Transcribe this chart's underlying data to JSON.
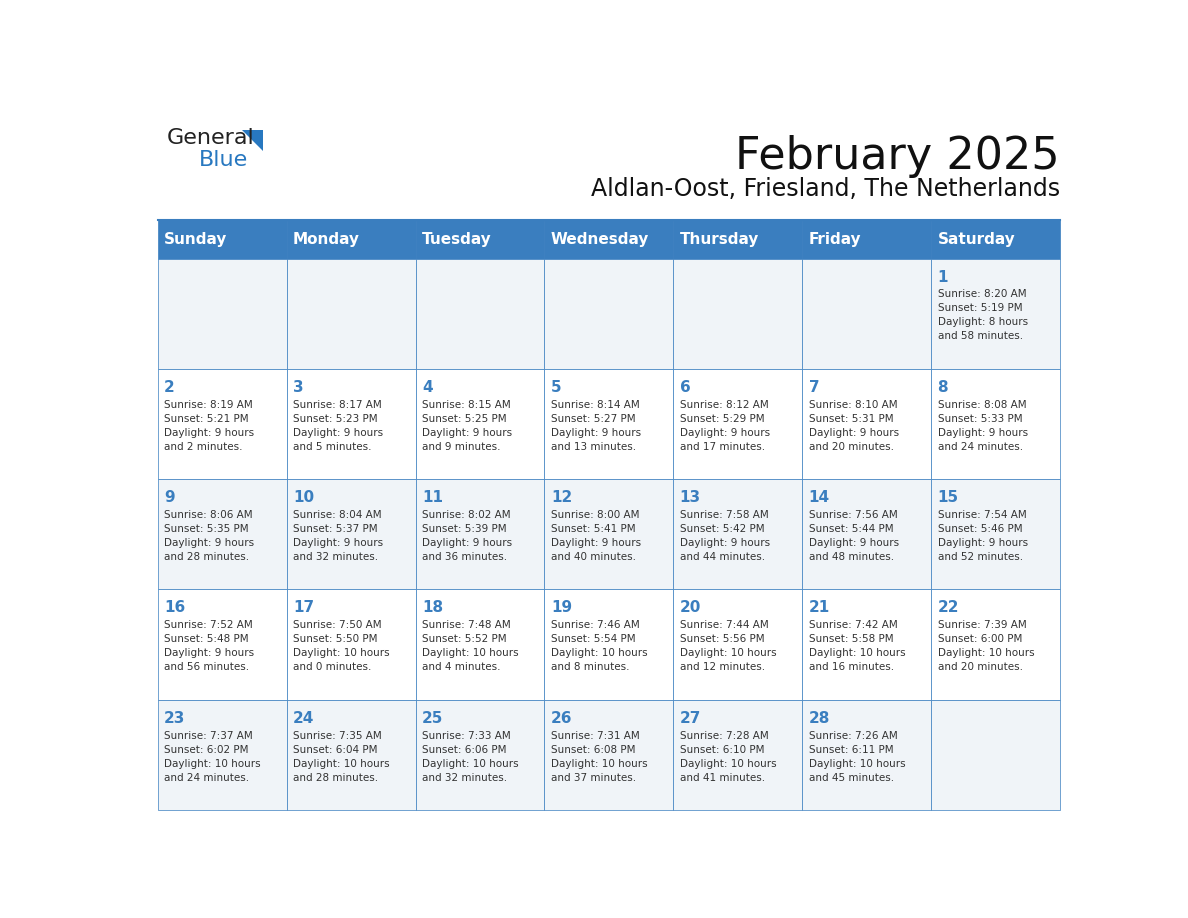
{
  "title": "February 2025",
  "subtitle": "Aldlan-Oost, Friesland, The Netherlands",
  "days_of_week": [
    "Sunday",
    "Monday",
    "Tuesday",
    "Wednesday",
    "Thursday",
    "Friday",
    "Saturday"
  ],
  "header_bg": "#3a7ebf",
  "header_text": "#ffffff",
  "cell_bg_light": "#f0f4f8",
  "cell_bg_white": "#ffffff",
  "border_color": "#3a7ebf",
  "text_color": "#333333",
  "day_num_color": "#3a7ebf",
  "logo_general_color": "#222222",
  "logo_blue_color": "#2878c0",
  "calendar_data": [
    [
      {
        "day": null,
        "info": null
      },
      {
        "day": null,
        "info": null
      },
      {
        "day": null,
        "info": null
      },
      {
        "day": null,
        "info": null
      },
      {
        "day": null,
        "info": null
      },
      {
        "day": null,
        "info": null
      },
      {
        "day": 1,
        "info": "Sunrise: 8:20 AM\nSunset: 5:19 PM\nDaylight: 8 hours\nand 58 minutes."
      }
    ],
    [
      {
        "day": 2,
        "info": "Sunrise: 8:19 AM\nSunset: 5:21 PM\nDaylight: 9 hours\nand 2 minutes."
      },
      {
        "day": 3,
        "info": "Sunrise: 8:17 AM\nSunset: 5:23 PM\nDaylight: 9 hours\nand 5 minutes."
      },
      {
        "day": 4,
        "info": "Sunrise: 8:15 AM\nSunset: 5:25 PM\nDaylight: 9 hours\nand 9 minutes."
      },
      {
        "day": 5,
        "info": "Sunrise: 8:14 AM\nSunset: 5:27 PM\nDaylight: 9 hours\nand 13 minutes."
      },
      {
        "day": 6,
        "info": "Sunrise: 8:12 AM\nSunset: 5:29 PM\nDaylight: 9 hours\nand 17 minutes."
      },
      {
        "day": 7,
        "info": "Sunrise: 8:10 AM\nSunset: 5:31 PM\nDaylight: 9 hours\nand 20 minutes."
      },
      {
        "day": 8,
        "info": "Sunrise: 8:08 AM\nSunset: 5:33 PM\nDaylight: 9 hours\nand 24 minutes."
      }
    ],
    [
      {
        "day": 9,
        "info": "Sunrise: 8:06 AM\nSunset: 5:35 PM\nDaylight: 9 hours\nand 28 minutes."
      },
      {
        "day": 10,
        "info": "Sunrise: 8:04 AM\nSunset: 5:37 PM\nDaylight: 9 hours\nand 32 minutes."
      },
      {
        "day": 11,
        "info": "Sunrise: 8:02 AM\nSunset: 5:39 PM\nDaylight: 9 hours\nand 36 minutes."
      },
      {
        "day": 12,
        "info": "Sunrise: 8:00 AM\nSunset: 5:41 PM\nDaylight: 9 hours\nand 40 minutes."
      },
      {
        "day": 13,
        "info": "Sunrise: 7:58 AM\nSunset: 5:42 PM\nDaylight: 9 hours\nand 44 minutes."
      },
      {
        "day": 14,
        "info": "Sunrise: 7:56 AM\nSunset: 5:44 PM\nDaylight: 9 hours\nand 48 minutes."
      },
      {
        "day": 15,
        "info": "Sunrise: 7:54 AM\nSunset: 5:46 PM\nDaylight: 9 hours\nand 52 minutes."
      }
    ],
    [
      {
        "day": 16,
        "info": "Sunrise: 7:52 AM\nSunset: 5:48 PM\nDaylight: 9 hours\nand 56 minutes."
      },
      {
        "day": 17,
        "info": "Sunrise: 7:50 AM\nSunset: 5:50 PM\nDaylight: 10 hours\nand 0 minutes."
      },
      {
        "day": 18,
        "info": "Sunrise: 7:48 AM\nSunset: 5:52 PM\nDaylight: 10 hours\nand 4 minutes."
      },
      {
        "day": 19,
        "info": "Sunrise: 7:46 AM\nSunset: 5:54 PM\nDaylight: 10 hours\nand 8 minutes."
      },
      {
        "day": 20,
        "info": "Sunrise: 7:44 AM\nSunset: 5:56 PM\nDaylight: 10 hours\nand 12 minutes."
      },
      {
        "day": 21,
        "info": "Sunrise: 7:42 AM\nSunset: 5:58 PM\nDaylight: 10 hours\nand 16 minutes."
      },
      {
        "day": 22,
        "info": "Sunrise: 7:39 AM\nSunset: 6:00 PM\nDaylight: 10 hours\nand 20 minutes."
      }
    ],
    [
      {
        "day": 23,
        "info": "Sunrise: 7:37 AM\nSunset: 6:02 PM\nDaylight: 10 hours\nand 24 minutes."
      },
      {
        "day": 24,
        "info": "Sunrise: 7:35 AM\nSunset: 6:04 PM\nDaylight: 10 hours\nand 28 minutes."
      },
      {
        "day": 25,
        "info": "Sunrise: 7:33 AM\nSunset: 6:06 PM\nDaylight: 10 hours\nand 32 minutes."
      },
      {
        "day": 26,
        "info": "Sunrise: 7:31 AM\nSunset: 6:08 PM\nDaylight: 10 hours\nand 37 minutes."
      },
      {
        "day": 27,
        "info": "Sunrise: 7:28 AM\nSunset: 6:10 PM\nDaylight: 10 hours\nand 41 minutes."
      },
      {
        "day": 28,
        "info": "Sunrise: 7:26 AM\nSunset: 6:11 PM\nDaylight: 10 hours\nand 45 minutes."
      },
      {
        "day": null,
        "info": null
      }
    ]
  ]
}
